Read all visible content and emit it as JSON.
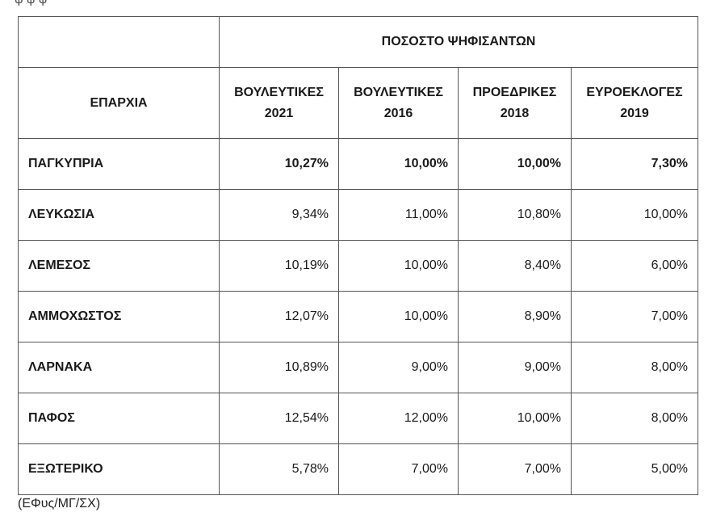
{
  "top_fragment": "ψ ψ ψ",
  "table": {
    "group_header": "ΠΟΣΟΣΤΟ ΨΗΦΙΣΑΝΤΩΝ",
    "region_header": "ΕΠΑΡΧΙΑ",
    "columns": [
      {
        "line1": "ΒΟΥΛΕΥΤΙΚΕΣ",
        "line2": "2021"
      },
      {
        "line1": "ΒΟΥΛΕΥΤΙΚΕΣ",
        "line2": "2016"
      },
      {
        "line1": "ΠΡΟΕΔΡΙΚΕΣ",
        "line2": "2018"
      },
      {
        "line1": "ΕΥΡΟΕΚΛΟΓΕΣ",
        "line2": "2019"
      }
    ],
    "rows": [
      {
        "region": "ΠΑΓΚΥΠΡΙΑ",
        "values": [
          "10,27%",
          "10,00%",
          "10,00%",
          "7,30%"
        ]
      },
      {
        "region": "ΛΕΥΚΩΣΙΑ",
        "values": [
          "9,34%",
          "11,00%",
          "10,80%",
          "10,00%"
        ]
      },
      {
        "region": "ΛΕΜΕΣΟΣ",
        "values": [
          "10,19%",
          "10,00%",
          "8,40%",
          "6,00%"
        ]
      },
      {
        "region": "ΑΜΜΟΧΩΣΤΟΣ",
        "values": [
          "12,07%",
          "10,00%",
          "8,90%",
          "7,00%"
        ]
      },
      {
        "region": "ΛΑΡΝΑΚΑ",
        "values": [
          "10,89%",
          "9,00%",
          "9,00%",
          "8,00%"
        ]
      },
      {
        "region": "ΠΑΦΟΣ",
        "values": [
          "12,54%",
          "12,00%",
          "10,00%",
          "8,00%"
        ]
      },
      {
        "region": "ΕΞΩΤΕΡΙΚΟ",
        "values": [
          "5,78%",
          "7,00%",
          "7,00%",
          "5,00%"
        ]
      }
    ]
  },
  "source": "(ΕΦυς/ΜΓ/ΣΧ)"
}
